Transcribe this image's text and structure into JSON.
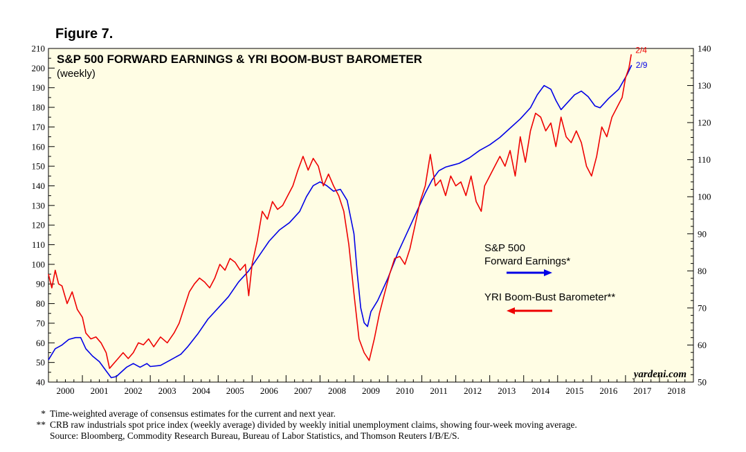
{
  "figure_label": "Figure 7.",
  "colors": {
    "plot_bg": "#fffde4",
    "earnings": "#0000e6",
    "barometer": "#ee0000"
  },
  "chart_data": {
    "type": "line",
    "title": "S&P 500 FORWARD EARNINGS & YRI BOOM-BUST BAROMETER",
    "subtitle": "(weekly)",
    "x_range": [
      2000,
      2019
    ],
    "x_tick_labels": [
      "2000",
      "2001",
      "2002",
      "2003",
      "2004",
      "2005",
      "2006",
      "2007",
      "2008",
      "2009",
      "2010",
      "2011",
      "2012",
      "2013",
      "2014",
      "2015",
      "2016",
      "2017",
      "2018"
    ],
    "ylim_left": [
      40,
      210
    ],
    "ylim_right": [
      50,
      140
    ],
    "left_ticks": [
      40,
      50,
      60,
      70,
      80,
      90,
      100,
      110,
      120,
      130,
      140,
      150,
      160,
      170,
      180,
      190,
      200,
      210
    ],
    "right_ticks": [
      50,
      60,
      70,
      80,
      90,
      100,
      110,
      120,
      130,
      140
    ],
    "grid": false,
    "series": [
      {
        "name": "S&P 500 Forward Earnings*",
        "label_line1": "S&P 500",
        "label_line2": "Forward Earnings*",
        "axis": "right",
        "color": "#0000e6",
        "end_label": "2/9",
        "points": [
          [
            2000.0,
            56
          ],
          [
            2000.2,
            59
          ],
          [
            2000.4,
            60
          ],
          [
            2000.6,
            61.5
          ],
          [
            2000.8,
            62
          ],
          [
            2000.95,
            62
          ],
          [
            2001.1,
            59
          ],
          [
            2001.3,
            57
          ],
          [
            2001.5,
            55.5
          ],
          [
            2001.7,
            53
          ],
          [
            2001.85,
            51.2
          ],
          [
            2002.0,
            51.5
          ],
          [
            2002.3,
            54
          ],
          [
            2002.5,
            55
          ],
          [
            2002.7,
            54
          ],
          [
            2002.9,
            55
          ],
          [
            2003.0,
            54.2
          ],
          [
            2003.3,
            54.5
          ],
          [
            2003.6,
            56
          ],
          [
            2003.9,
            57.5
          ],
          [
            2004.1,
            59.5
          ],
          [
            2004.4,
            63
          ],
          [
            2004.7,
            67
          ],
          [
            2005.0,
            70
          ],
          [
            2005.3,
            73
          ],
          [
            2005.6,
            77
          ],
          [
            2005.9,
            80
          ],
          [
            2006.2,
            84
          ],
          [
            2006.5,
            88
          ],
          [
            2006.8,
            91
          ],
          [
            2007.1,
            93
          ],
          [
            2007.4,
            96
          ],
          [
            2007.6,
            100
          ],
          [
            2007.8,
            103
          ],
          [
            2008.0,
            104
          ],
          [
            2008.2,
            103
          ],
          [
            2008.4,
            101.5
          ],
          [
            2008.6,
            102
          ],
          [
            2008.8,
            99
          ],
          [
            2009.0,
            90
          ],
          [
            2009.1,
            79
          ],
          [
            2009.2,
            70
          ],
          [
            2009.3,
            66
          ],
          [
            2009.4,
            65
          ],
          [
            2009.5,
            69
          ],
          [
            2009.7,
            72
          ],
          [
            2010.0,
            78
          ],
          [
            2010.3,
            85
          ],
          [
            2010.6,
            91
          ],
          [
            2010.9,
            97
          ],
          [
            2011.1,
            101
          ],
          [
            2011.3,
            104.5
          ],
          [
            2011.5,
            107
          ],
          [
            2011.7,
            108
          ],
          [
            2011.9,
            108.5
          ],
          [
            2012.1,
            109
          ],
          [
            2012.4,
            110.5
          ],
          [
            2012.7,
            112.5
          ],
          [
            2013.0,
            114
          ],
          [
            2013.3,
            116
          ],
          [
            2013.6,
            118.5
          ],
          [
            2013.9,
            121
          ],
          [
            2014.2,
            124
          ],
          [
            2014.4,
            127.5
          ],
          [
            2014.6,
            130
          ],
          [
            2014.8,
            129
          ],
          [
            2014.95,
            126
          ],
          [
            2015.1,
            123.5
          ],
          [
            2015.3,
            125.5
          ],
          [
            2015.5,
            127.5
          ],
          [
            2015.7,
            128.5
          ],
          [
            2015.9,
            127
          ],
          [
            2016.1,
            124.5
          ],
          [
            2016.25,
            124
          ],
          [
            2016.5,
            126.5
          ],
          [
            2016.8,
            129
          ],
          [
            2017.05,
            133
          ],
          [
            2017.18,
            135.5
          ]
        ]
      },
      {
        "name": "YRI Boom-Bust Barometer**",
        "label_line1": "YRI Boom-Bust Barometer**",
        "axis": "left",
        "color": "#ee0000",
        "end_label": "2/4",
        "points": [
          [
            2000.0,
            95
          ],
          [
            2000.1,
            88
          ],
          [
            2000.2,
            97
          ],
          [
            2000.3,
            90
          ],
          [
            2000.4,
            89
          ],
          [
            2000.55,
            80
          ],
          [
            2000.7,
            86
          ],
          [
            2000.85,
            77
          ],
          [
            2001.0,
            73
          ],
          [
            2001.1,
            65
          ],
          [
            2001.25,
            62
          ],
          [
            2001.4,
            63
          ],
          [
            2001.55,
            60
          ],
          [
            2001.7,
            55
          ],
          [
            2001.8,
            47
          ],
          [
            2001.95,
            50
          ],
          [
            2002.05,
            52
          ],
          [
            2002.2,
            55
          ],
          [
            2002.35,
            52
          ],
          [
            2002.5,
            55
          ],
          [
            2002.65,
            60
          ],
          [
            2002.8,
            59
          ],
          [
            2002.95,
            62
          ],
          [
            2003.1,
            58
          ],
          [
            2003.3,
            63
          ],
          [
            2003.5,
            60
          ],
          [
            2003.7,
            65
          ],
          [
            2003.85,
            70
          ],
          [
            2004.0,
            78
          ],
          [
            2004.15,
            86
          ],
          [
            2004.3,
            90
          ],
          [
            2004.45,
            93
          ],
          [
            2004.6,
            91
          ],
          [
            2004.75,
            88
          ],
          [
            2004.9,
            93
          ],
          [
            2005.05,
            100
          ],
          [
            2005.2,
            97
          ],
          [
            2005.35,
            103
          ],
          [
            2005.5,
            101
          ],
          [
            2005.65,
            97
          ],
          [
            2005.8,
            100
          ],
          [
            2005.9,
            84
          ],
          [
            2006.0,
            100
          ],
          [
            2006.15,
            112
          ],
          [
            2006.3,
            127
          ],
          [
            2006.45,
            123
          ],
          [
            2006.6,
            132
          ],
          [
            2006.75,
            128
          ],
          [
            2006.9,
            130
          ],
          [
            2007.05,
            135
          ],
          [
            2007.2,
            140
          ],
          [
            2007.35,
            148
          ],
          [
            2007.5,
            155
          ],
          [
            2007.65,
            148
          ],
          [
            2007.8,
            154
          ],
          [
            2007.95,
            150
          ],
          [
            2008.1,
            140
          ],
          [
            2008.25,
            146
          ],
          [
            2008.4,
            140
          ],
          [
            2008.55,
            135
          ],
          [
            2008.7,
            127
          ],
          [
            2008.85,
            110
          ],
          [
            2009.0,
            85
          ],
          [
            2009.15,
            62
          ],
          [
            2009.3,
            55
          ],
          [
            2009.45,
            51
          ],
          [
            2009.6,
            62
          ],
          [
            2009.75,
            75
          ],
          [
            2009.9,
            85
          ],
          [
            2010.05,
            95
          ],
          [
            2010.2,
            103
          ],
          [
            2010.35,
            104
          ],
          [
            2010.5,
            100
          ],
          [
            2010.65,
            108
          ],
          [
            2010.8,
            120
          ],
          [
            2010.95,
            132
          ],
          [
            2011.1,
            140
          ],
          [
            2011.25,
            156
          ],
          [
            2011.4,
            140
          ],
          [
            2011.55,
            143
          ],
          [
            2011.7,
            135
          ],
          [
            2011.85,
            145
          ],
          [
            2012.0,
            140
          ],
          [
            2012.15,
            142
          ],
          [
            2012.3,
            135
          ],
          [
            2012.45,
            145
          ],
          [
            2012.6,
            132
          ],
          [
            2012.75,
            127
          ],
          [
            2012.85,
            140
          ],
          [
            2013.0,
            145
          ],
          [
            2013.15,
            150
          ],
          [
            2013.3,
            155
          ],
          [
            2013.45,
            150
          ],
          [
            2013.6,
            158
          ],
          [
            2013.75,
            145
          ],
          [
            2013.9,
            165
          ],
          [
            2014.05,
            152
          ],
          [
            2014.2,
            168
          ],
          [
            2014.35,
            177
          ],
          [
            2014.5,
            175
          ],
          [
            2014.65,
            168
          ],
          [
            2014.8,
            172
          ],
          [
            2014.95,
            160
          ],
          [
            2015.1,
            175
          ],
          [
            2015.25,
            165
          ],
          [
            2015.4,
            162
          ],
          [
            2015.55,
            168
          ],
          [
            2015.7,
            162
          ],
          [
            2015.85,
            150
          ],
          [
            2016.0,
            145
          ],
          [
            2016.15,
            155
          ],
          [
            2016.3,
            170
          ],
          [
            2016.45,
            165
          ],
          [
            2016.6,
            175
          ],
          [
            2016.75,
            180
          ],
          [
            2016.9,
            185
          ],
          [
            2017.0,
            195
          ],
          [
            2017.1,
            200
          ],
          [
            2017.17,
            207
          ]
        ]
      }
    ],
    "watermark": "yardeni.com"
  },
  "footnotes": [
    {
      "mark": "*",
      "text": "Time-weighted average of consensus estimates for the current and next year."
    },
    {
      "mark": "**",
      "text": "CRB raw industrials spot price index (weekly average) divided by weekly initial unemployment claims, showing four-week moving average."
    },
    {
      "mark": "",
      "text": "Source: Bloomberg, Commodity Research Bureau, Bureau of Labor Statistics, and Thomson Reuters I/B/E/S."
    }
  ]
}
